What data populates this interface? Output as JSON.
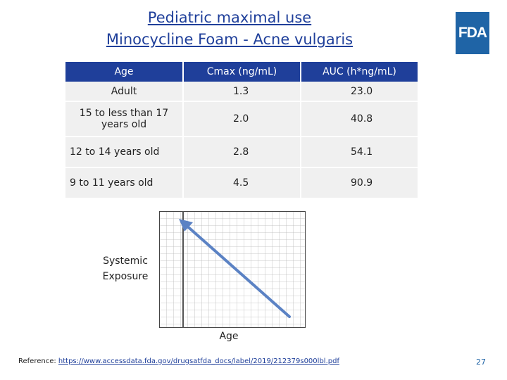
{
  "title": {
    "line1": "Pediatric maximal use",
    "line2": "Minocycline Foam - Acne vulgaris"
  },
  "logo": {
    "text": "FDA",
    "color": "#1f64a6"
  },
  "table": {
    "headers": [
      "Age",
      "Cmax (ng/mL)",
      "AUC (h*ng/mL)"
    ],
    "rows": [
      [
        "Adult",
        "1.3",
        "23.0"
      ],
      [
        "15 to less than 17 years old",
        "2.0",
        "40.8"
      ],
      [
        "12 to 14 years old",
        "2.8",
        "54.1"
      ],
      [
        "9 to 11 years old",
        "4.5",
        "90.9"
      ]
    ],
    "header_color": "#1f3f9a"
  },
  "graph": {
    "y_label": "Systemic Exposure",
    "x_label": "Age",
    "arrow_color": "#5b82c4",
    "icon": "downward-trend-arrow-icon"
  },
  "reference": {
    "prefix": "Reference: ",
    "link_text": "https://www.accessdata.fda.gov/drugsatfda_docs/label/2019/212379s000lbl.pdf"
  },
  "page_number": "27"
}
